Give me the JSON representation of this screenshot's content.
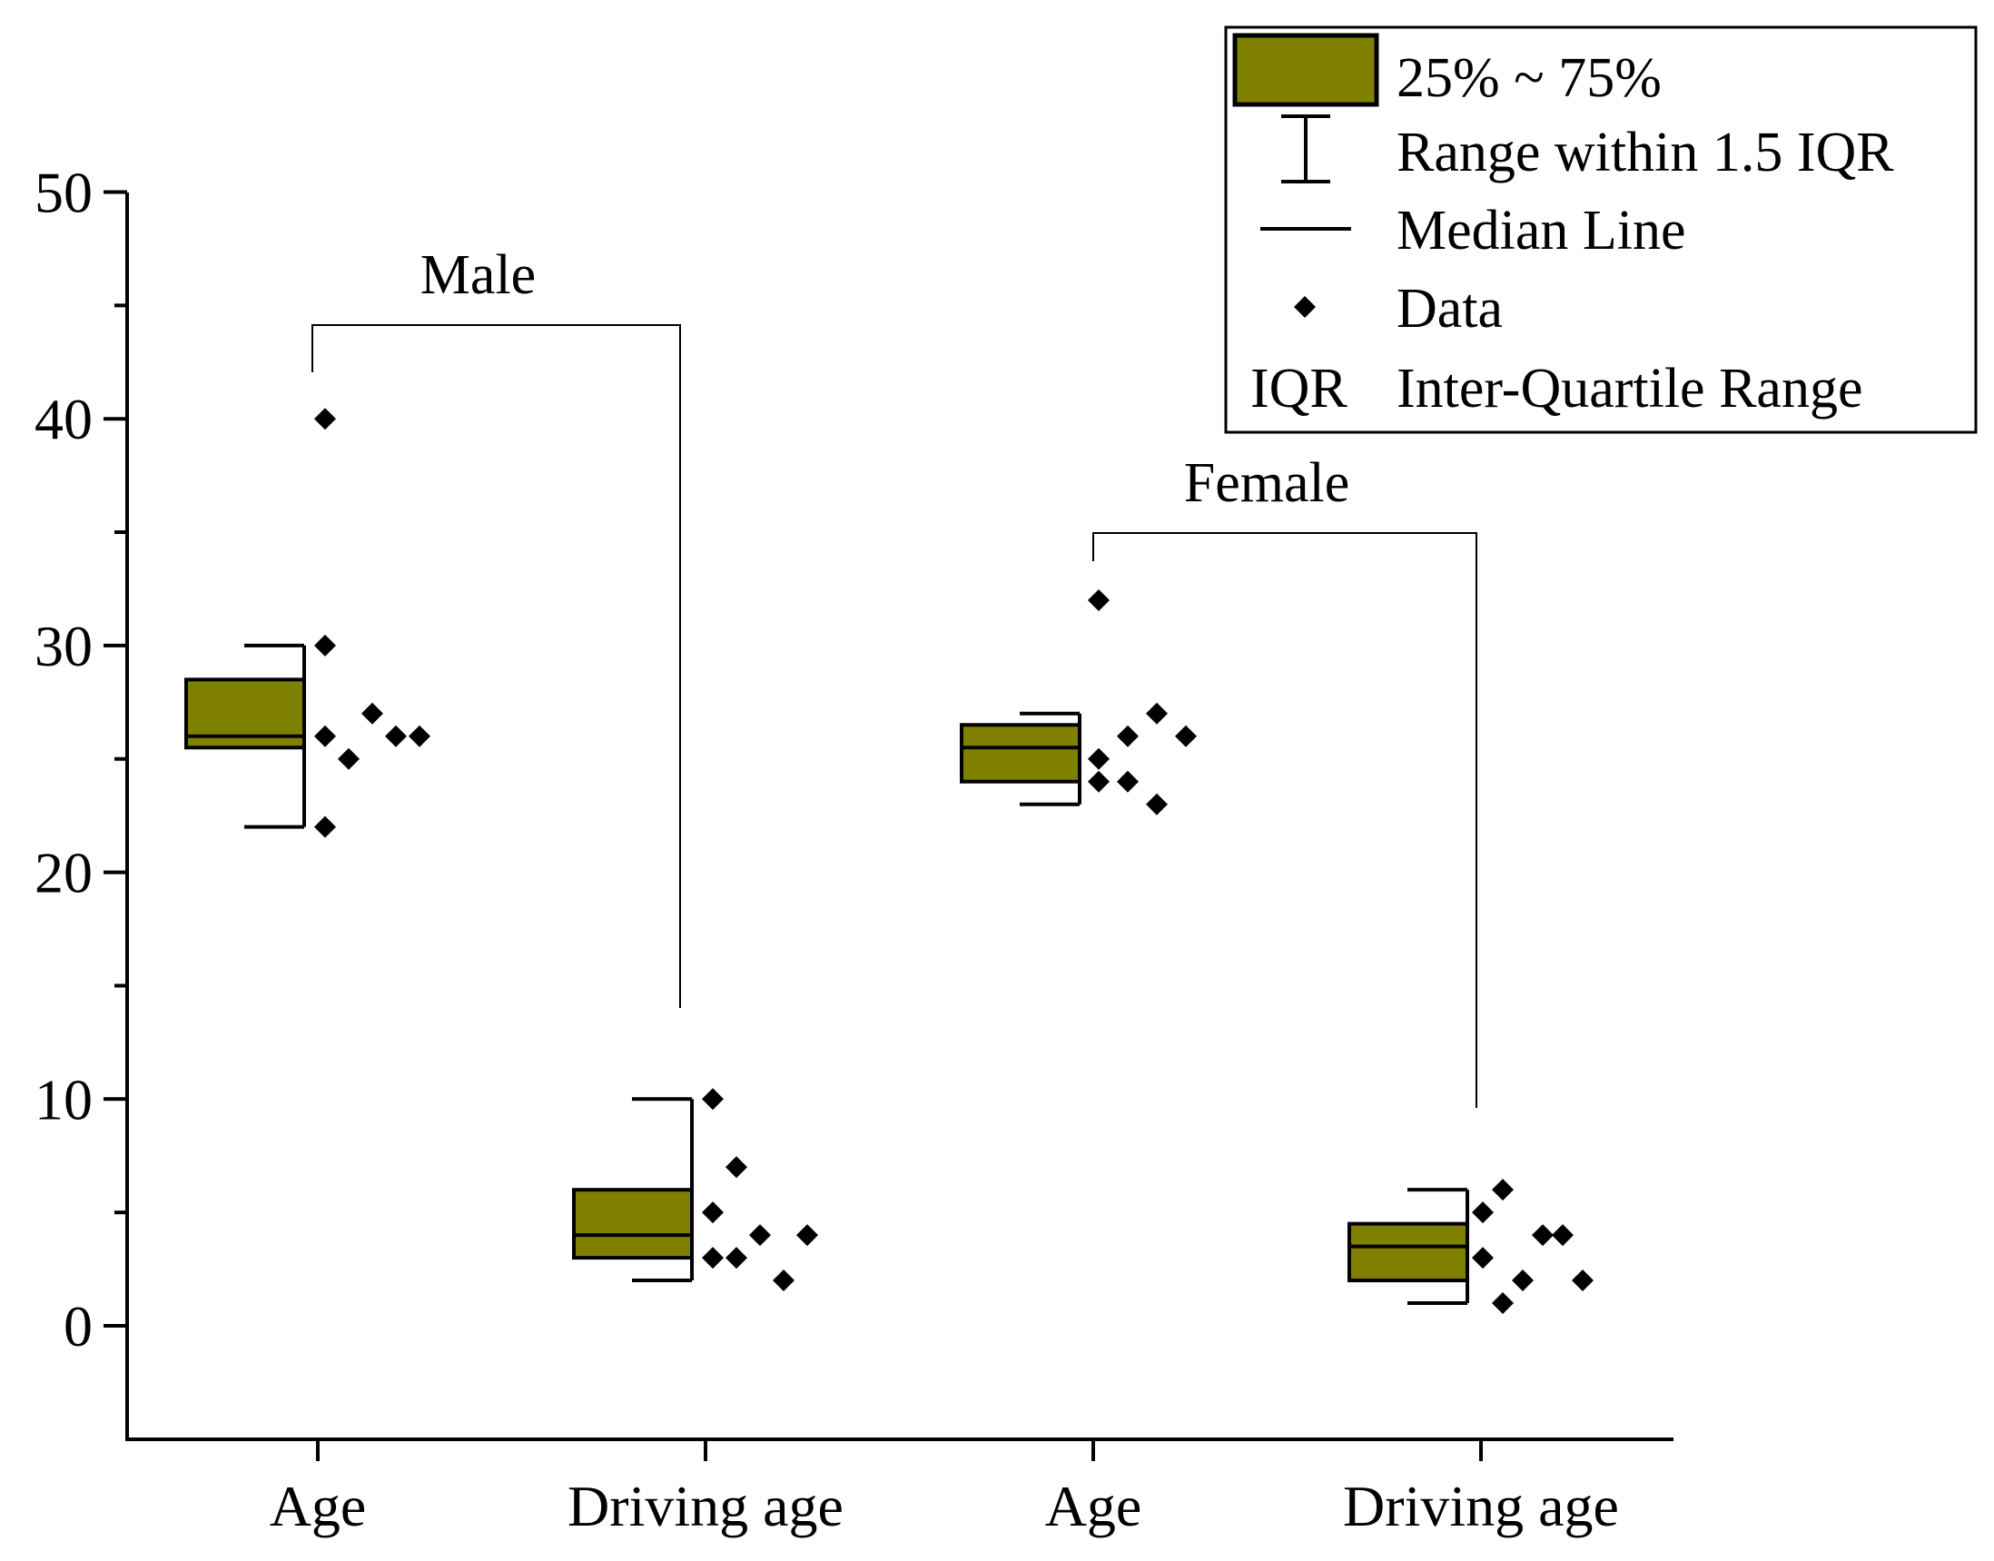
{
  "chart_data": {
    "type": "box",
    "title": "",
    "xlabel": "",
    "ylabel": "",
    "ylim": [
      -5,
      50
    ],
    "yticks": [
      0,
      10,
      20,
      30,
      40,
      50
    ],
    "ytick_labels": [
      "0",
      "10",
      "20",
      "30",
      "40",
      "50"
    ],
    "minor_ytick_step": 5,
    "grid": false,
    "box_color": "#808000",
    "categories": [
      "Age",
      "Driving age",
      "Age",
      "Driving age"
    ],
    "groups": [
      {
        "label": "Male",
        "categories": [
          0,
          1
        ]
      },
      {
        "label": "Female",
        "categories": [
          2,
          3
        ]
      }
    ],
    "boxes": [
      {
        "category": "Age",
        "group": "Male",
        "q1": 25.5,
        "median": 26,
        "q3": 28.5,
        "whisker_low": 22,
        "whisker_high": 30,
        "data": [
          40,
          30,
          26,
          25,
          27,
          26,
          26,
          22
        ]
      },
      {
        "category": "Driving age",
        "group": "Male",
        "q1": 3,
        "median": 4,
        "q3": 6,
        "whisker_low": 2,
        "whisker_high": 10,
        "data": [
          10,
          5,
          3,
          7,
          3,
          4,
          2,
          4
        ]
      },
      {
        "category": "Age",
        "group": "Female",
        "q1": 24,
        "median": 25.5,
        "q3": 26.5,
        "whisker_low": 23,
        "whisker_high": 27,
        "data": [
          32,
          25,
          24,
          26,
          24,
          27,
          23,
          26
        ]
      },
      {
        "category": "Driving age",
        "group": "Female",
        "q1": 2,
        "median": 3.5,
        "q3": 4.5,
        "whisker_low": 1,
        "whisker_high": 6,
        "data": [
          5,
          3,
          6,
          1,
          2,
          4,
          4,
          2
        ]
      }
    ],
    "legend": {
      "position": "top-right",
      "entries": [
        {
          "symbol": "box",
          "label": "25% ~ 75%"
        },
        {
          "symbol": "whisker",
          "label": "Range within 1.5 IQR"
        },
        {
          "symbol": "median",
          "label": "Median Line"
        },
        {
          "symbol": "diamond",
          "label": "Data"
        },
        {
          "symbol": "IQR",
          "label": "Inter-Quartile Range"
        }
      ]
    }
  }
}
